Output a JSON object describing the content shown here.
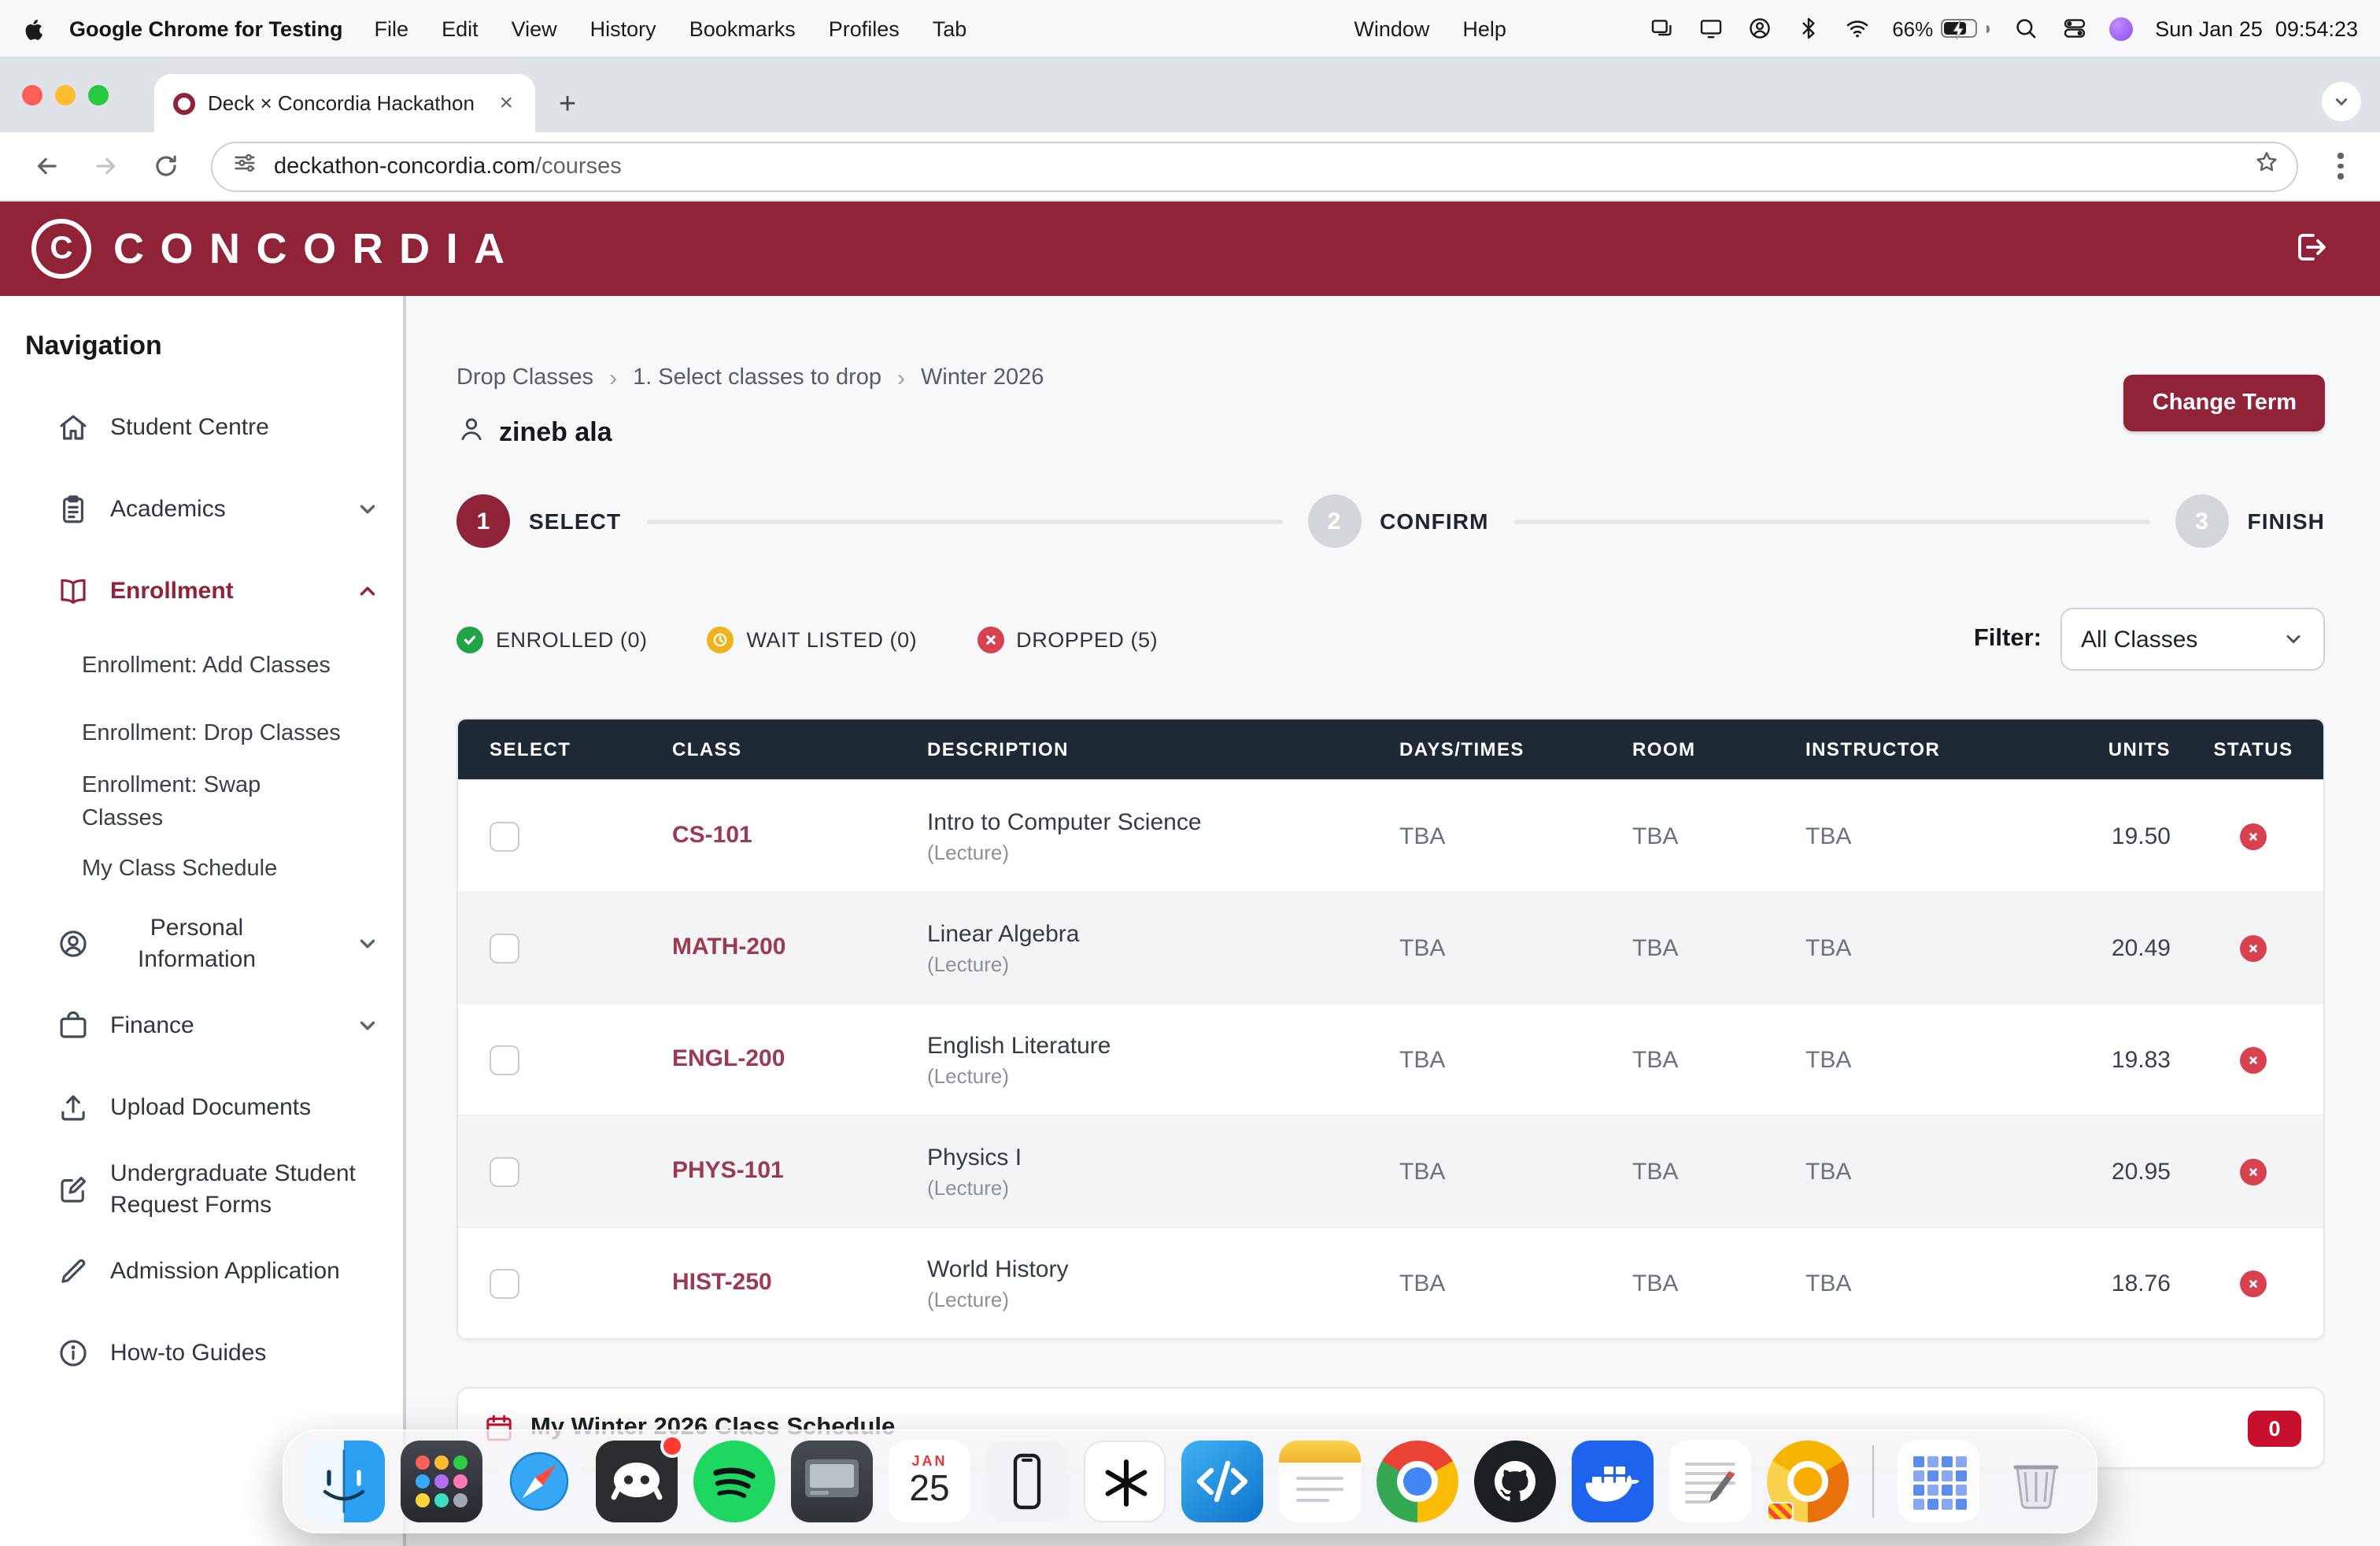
{
  "menu_bar": {
    "app_name": "Google Chrome for Testing",
    "menus": [
      "File",
      "Edit",
      "View",
      "History",
      "Bookmarks",
      "Profiles",
      "Tab"
    ],
    "menus_right": [
      "Window",
      "Help"
    ],
    "battery_percent": "66%",
    "clock_date": "Sun Jan 25",
    "clock_time": "09:54:23"
  },
  "browser": {
    "tab_title": "Deck × Concordia Hackathon",
    "url_domain": "deckathon-concordia.com",
    "url_path": "/courses"
  },
  "header": {
    "brand": "CONCORDIA",
    "logo_letter": "C"
  },
  "sidebar": {
    "heading": "Navigation",
    "items": [
      {
        "label": "Student Centre",
        "icon": "home"
      },
      {
        "label": "Academics",
        "icon": "clipboard",
        "chevron": "down"
      },
      {
        "label": "Enrollment",
        "icon": "book",
        "chevron": "up",
        "active": true
      },
      {
        "label": "Enrollment: Add Classes",
        "sub": true
      },
      {
        "label": "Enrollment: Drop Classes",
        "sub": true
      },
      {
        "label": "Enrollment: Swap Classes",
        "sub": true,
        "wrap": 150
      },
      {
        "label": "My Class Schedule",
        "sub": true
      },
      {
        "label": "Personal Information",
        "icon": "user",
        "chevron": "down",
        "wrap": 110,
        "align": "center"
      },
      {
        "label": "Finance",
        "icon": "wallet",
        "chevron": "down"
      },
      {
        "label": "Upload Documents",
        "icon": "upload"
      },
      {
        "label": "Undergraduate Student Request Forms",
        "icon": "pencil-square",
        "wrap": 175
      },
      {
        "label": "Admission Application",
        "icon": "pencil"
      },
      {
        "label": "How-to Guides",
        "icon": "info"
      }
    ]
  },
  "main": {
    "breadcrumb": [
      "Drop Classes",
      "1. Select classes to drop",
      "Winter 2026"
    ],
    "user_name": "zineb ala",
    "change_term_label": "Change Term",
    "steps": [
      {
        "num": "1",
        "label": "SELECT",
        "active": true
      },
      {
        "num": "2",
        "label": "CONFIRM",
        "active": false
      },
      {
        "num": "3",
        "label": "FINISH",
        "active": false
      }
    ],
    "status_filters": [
      {
        "label": "ENROLLED (0)",
        "icon": "check",
        "color": "#21a447"
      },
      {
        "label": "WAIT LISTED (0)",
        "icon": "clock",
        "color": "#f1b31c"
      },
      {
        "label": "DROPPED (5)",
        "icon": "x",
        "color": "#d8414f"
      }
    ],
    "filter_label": "Filter:",
    "filter_value": "All Classes",
    "table": {
      "columns": [
        "SELECT",
        "CLASS",
        "DESCRIPTION",
        "DAYS/TIMES",
        "ROOM",
        "INSTRUCTOR",
        "UNITS",
        "STATUS"
      ],
      "rows": [
        {
          "code": "CS-101",
          "title": "Intro to Computer Science",
          "kind": "(Lecture)",
          "days": "TBA",
          "room": "TBA",
          "instructor": "TBA",
          "units": "19.50",
          "status": "dropped"
        },
        {
          "code": "MATH-200",
          "title": "Linear Algebra",
          "kind": "(Lecture)",
          "days": "TBA",
          "room": "TBA",
          "instructor": "TBA",
          "units": "20.49",
          "status": "dropped"
        },
        {
          "code": "ENGL-200",
          "title": "English Literature",
          "kind": "(Lecture)",
          "days": "TBA",
          "room": "TBA",
          "instructor": "TBA",
          "units": "19.83",
          "status": "dropped"
        },
        {
          "code": "PHYS-101",
          "title": "Physics I",
          "kind": "(Lecture)",
          "days": "TBA",
          "room": "TBA",
          "instructor": "TBA",
          "units": "20.95",
          "status": "dropped"
        },
        {
          "code": "HIST-250",
          "title": "World History",
          "kind": "(Lecture)",
          "days": "TBA",
          "room": "TBA",
          "instructor": "TBA",
          "units": "18.76",
          "status": "dropped"
        }
      ]
    },
    "schedule": {
      "title": "My Winter 2026 Class Schedule",
      "badge": "0"
    }
  },
  "dock": {
    "items": [
      {
        "name": "finder"
      },
      {
        "name": "launchpad"
      },
      {
        "name": "safari"
      },
      {
        "name": "discord",
        "badge": true
      },
      {
        "name": "spotify"
      },
      {
        "name": "screenshot-app"
      },
      {
        "name": "calendar",
        "month": "JAN",
        "day": "25"
      },
      {
        "name": "iphone-mirroring"
      },
      {
        "name": "chatgpt"
      },
      {
        "name": "vscode"
      },
      {
        "name": "notes"
      },
      {
        "name": "chrome"
      },
      {
        "name": "github"
      },
      {
        "name": "docker"
      },
      {
        "name": "textedit"
      },
      {
        "name": "chrome-testing"
      },
      {
        "name": "divider"
      },
      {
        "name": "grid-app"
      },
      {
        "name": "trash"
      }
    ]
  },
  "colors": {
    "maroon": "#912338",
    "table_header": "#1e2936",
    "status_red": "#d8414f",
    "badge_red": "#c8102e"
  }
}
